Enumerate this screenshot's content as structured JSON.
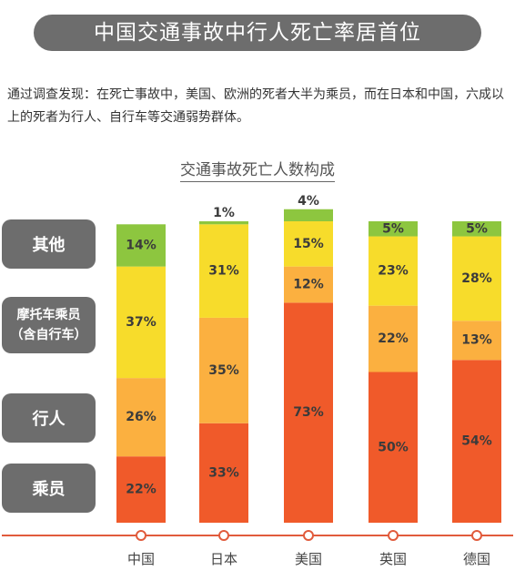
{
  "banner": "中国交通事故中行人死亡率居首位",
  "intro": "通过调查发现：在死亡事故中，美国、欧洲的死者大半为乘员，而在日本和中国，六成以上的死者为行人、自行车等交通弱势群体。",
  "chart_data": {
    "type": "bar",
    "stacked": true,
    "title": "交通事故死亡人数构成",
    "categories": [
      "中国",
      "日本",
      "美国",
      "英国",
      "德国"
    ],
    "series": [
      {
        "name": "乘员",
        "values": [
          22,
          33,
          73,
          50,
          54
        ],
        "color": "#f05a2a"
      },
      {
        "name": "行人",
        "values": [
          26,
          35,
          12,
          22,
          13
        ],
        "color": "#fbb040"
      },
      {
        "name": "摩托车乘员\n（含自行车）",
        "values": [
          37,
          31,
          15,
          23,
          28
        ],
        "color": "#f7dc2b"
      },
      {
        "name": "其他",
        "values": [
          14,
          1,
          4,
          5,
          5
        ],
        "color": "#8dc63f"
      }
    ],
    "ylim": [
      0,
      100
    ],
    "value_suffix": "%",
    "axis_color": "#e15b3c"
  }
}
